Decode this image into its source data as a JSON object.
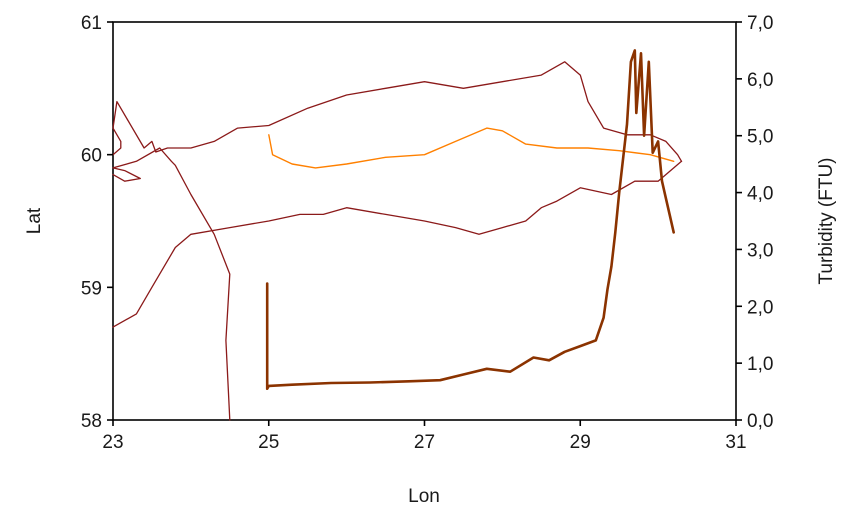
{
  "chart_data": {
    "type": "line",
    "xlabel": "Lon",
    "ylabel_left": "Lat",
    "ylabel_right": "Turbidity (FTU)",
    "xlim": [
      23,
      31
    ],
    "ylim_left": [
      58,
      61
    ],
    "ylim_right": [
      0,
      7
    ],
    "x_ticks": [
      23,
      25,
      27,
      29,
      31
    ],
    "x_tick_labels": [
      "23",
      "25",
      "27",
      "29",
      "31"
    ],
    "y_left_ticks": [
      58,
      59,
      60,
      61
    ],
    "y_left_tick_labels": [
      "58",
      "59",
      "60",
      "61"
    ],
    "y_right_ticks": [
      0,
      1,
      2,
      3,
      4,
      5,
      6,
      7
    ],
    "y_right_tick_labels": [
      "0,0",
      "1,0",
      "2,0",
      "3,0",
      "4,0",
      "5,0",
      "6,0",
      "7,0"
    ],
    "grid": false,
    "legend": "none",
    "series": [
      {
        "axis": "left",
        "color": "#8b1a1a",
        "x": [
          23.0,
          23.1,
          23.1,
          23.0,
          23.05,
          23.4,
          23.5,
          23.55,
          23.7,
          24.0,
          24.3,
          24.6,
          25.0,
          25.5,
          26.0,
          26.5,
          27.0,
          27.5,
          28.0,
          28.5,
          28.8,
          29.0,
          29.1,
          29.3,
          29.6,
          29.9,
          30.1,
          30.25,
          30.3
        ],
        "y": [
          60.0,
          60.05,
          60.1,
          60.2,
          60.4,
          60.05,
          60.1,
          60.02,
          60.05,
          60.05,
          60.1,
          60.2,
          60.22,
          60.35,
          60.45,
          60.5,
          60.55,
          60.5,
          60.55,
          60.6,
          60.7,
          60.6,
          60.4,
          60.2,
          60.15,
          60.15,
          60.1,
          60.0,
          59.95
        ],
        "line_width": 1.3
      },
      {
        "axis": "left",
        "color": "#8b1a1a",
        "x": [
          30.3,
          30.0,
          29.7,
          29.4,
          29.0,
          28.7,
          28.5,
          28.3,
          28.0,
          27.7,
          27.4,
          27.0,
          26.5,
          26.0,
          25.7,
          25.4,
          25.0,
          24.5,
          24.0,
          23.8,
          23.5,
          23.3,
          23.0
        ],
        "y": [
          59.95,
          59.8,
          59.8,
          59.7,
          59.75,
          59.65,
          59.6,
          59.5,
          59.45,
          59.4,
          59.45,
          59.5,
          59.55,
          59.6,
          59.55,
          59.55,
          59.5,
          59.45,
          59.4,
          59.3,
          59.0,
          58.8,
          58.7
        ],
        "line_width": 1.3
      },
      {
        "axis": "left",
        "color": "#8b1a1a",
        "x": [
          23.0,
          23.15,
          23.35,
          23.15,
          23.0,
          23.3,
          23.6,
          23.75,
          23.8,
          24.0,
          24.3,
          24.5,
          24.45,
          24.5
        ],
        "y": [
          59.85,
          59.8,
          59.82,
          59.88,
          59.9,
          59.95,
          60.05,
          59.95,
          59.92,
          59.7,
          59.4,
          59.1,
          58.6,
          58.0
        ],
        "line_width": 1.3
      },
      {
        "axis": "left",
        "color": "#ff8000",
        "x": [
          25.0,
          25.05,
          25.3,
          25.6,
          26.0,
          26.5,
          27.0,
          27.4,
          27.8,
          28.0,
          28.3,
          28.7,
          29.1,
          29.5,
          29.9,
          30.2
        ],
        "y": [
          60.15,
          60.0,
          59.93,
          59.9,
          59.93,
          59.98,
          60.0,
          60.1,
          60.2,
          60.18,
          60.08,
          60.05,
          60.05,
          60.03,
          60.0,
          59.95
        ],
        "line_width": 1.4
      },
      {
        "axis": "right",
        "color": "#8b3300",
        "x": [
          24.98,
          24.98,
          24.98,
          25.0,
          25.3,
          25.8,
          26.3,
          26.8,
          27.2,
          27.5,
          27.8,
          28.1,
          28.4,
          28.6,
          28.8,
          29.0,
          29.2,
          29.3,
          29.35,
          29.4,
          29.45,
          29.5,
          29.6,
          29.65,
          29.7,
          29.72,
          29.78,
          29.82,
          29.88,
          29.93,
          30.0,
          30.05,
          30.1,
          30.15,
          30.2
        ],
        "y": [
          2.4,
          1.0,
          0.55,
          0.6,
          0.62,
          0.65,
          0.66,
          0.68,
          0.7,
          0.8,
          0.9,
          0.85,
          1.1,
          1.05,
          1.2,
          1.3,
          1.4,
          1.8,
          2.3,
          2.7,
          3.3,
          4.0,
          5.2,
          6.3,
          6.5,
          5.4,
          6.45,
          5.0,
          6.3,
          4.7,
          4.9,
          4.2,
          3.9,
          3.6,
          3.3
        ],
        "line_width": 2.6
      }
    ]
  }
}
